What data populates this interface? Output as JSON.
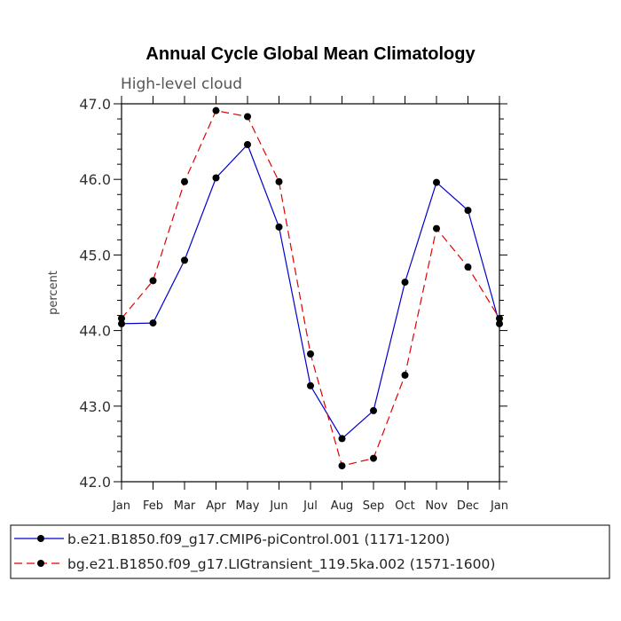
{
  "chart_data": {
    "type": "line",
    "title": "Annual Cycle Global Mean Climatology",
    "subtitle": "High-level cloud",
    "ylabel": "percent",
    "xlabel": "",
    "categories": [
      "Jan",
      "Feb",
      "Mar",
      "Apr",
      "May",
      "Jun",
      "Jul",
      "Aug",
      "Sep",
      "Oct",
      "Nov",
      "Dec",
      "Jan"
    ],
    "ylim": [
      42.0,
      47.0
    ],
    "yticks": [
      "42.0",
      "43.0",
      "44.0",
      "45.0",
      "46.0",
      "47.0"
    ],
    "series": [
      {
        "name": "b.e21.B1850.f09_g17.CMIP6-piControl.001 (1171-1200)",
        "color": "#0000cc",
        "dash": "solid",
        "values": [
          44.09,
          44.1,
          44.93,
          46.02,
          46.46,
          45.37,
          43.27,
          42.57,
          42.94,
          44.64,
          45.96,
          45.59,
          44.09
        ]
      },
      {
        "name": "bg.e21.B1850.f09_g17.LIGtransient_119.5ka.002 (1571-1600)",
        "color": "#e00000",
        "dash": "dashed",
        "values": [
          44.16,
          44.66,
          45.97,
          46.91,
          46.83,
          45.97,
          43.69,
          42.21,
          42.31,
          43.41,
          45.35,
          44.84,
          44.16
        ]
      }
    ],
    "legend": "bottom",
    "grid": false
  }
}
